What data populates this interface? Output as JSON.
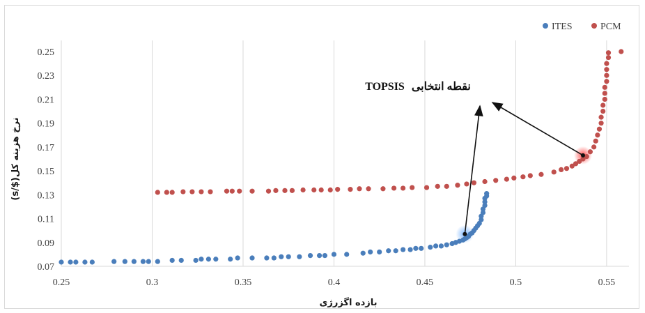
{
  "chart_data": {
    "type": "scatter",
    "xlabel": "بازده اگزرژی",
    "ylabel": "نرخ هزینه کل($/s)",
    "xlim": [
      0.25,
      0.56
    ],
    "ylim": [
      0.07,
      0.25
    ],
    "x_ticks": [
      "0.25",
      "0.3",
      "0.35",
      "0.4",
      "0.45",
      "0.5",
      "0.55"
    ],
    "y_ticks": [
      "0.07",
      "0.09",
      "0.11",
      "0.13",
      "0.15",
      "0.17",
      "0.19",
      "0.21",
      "0.23",
      "0.25"
    ],
    "grid": "vertical",
    "legend_position": "top-right",
    "annotation": {
      "text_fa": "نقطه انتخابی",
      "text_en": "TOPSIS",
      "targets": [
        "ITES",
        "PCM"
      ]
    },
    "series": [
      {
        "name": "ITES",
        "color": "#4a7ebb",
        "highlight": {
          "x": 0.472,
          "y": 0.097
        },
        "points": [
          [
            0.25,
            0.0735
          ],
          [
            0.255,
            0.0735
          ],
          [
            0.258,
            0.0735
          ],
          [
            0.263,
            0.0735
          ],
          [
            0.267,
            0.0735
          ],
          [
            0.279,
            0.074
          ],
          [
            0.285,
            0.074
          ],
          [
            0.29,
            0.074
          ],
          [
            0.295,
            0.074
          ],
          [
            0.298,
            0.074
          ],
          [
            0.303,
            0.074
          ],
          [
            0.311,
            0.075
          ],
          [
            0.316,
            0.075
          ],
          [
            0.324,
            0.075
          ],
          [
            0.327,
            0.076
          ],
          [
            0.331,
            0.076
          ],
          [
            0.335,
            0.076
          ],
          [
            0.343,
            0.076
          ],
          [
            0.347,
            0.077
          ],
          [
            0.355,
            0.077
          ],
          [
            0.363,
            0.077
          ],
          [
            0.367,
            0.077
          ],
          [
            0.371,
            0.078
          ],
          [
            0.375,
            0.078
          ],
          [
            0.381,
            0.078
          ],
          [
            0.387,
            0.079
          ],
          [
            0.392,
            0.079
          ],
          [
            0.395,
            0.079
          ],
          [
            0.4,
            0.08
          ],
          [
            0.407,
            0.08
          ],
          [
            0.416,
            0.081
          ],
          [
            0.42,
            0.082
          ],
          [
            0.425,
            0.082
          ],
          [
            0.43,
            0.083
          ],
          [
            0.434,
            0.083
          ],
          [
            0.438,
            0.084
          ],
          [
            0.442,
            0.084
          ],
          [
            0.445,
            0.085
          ],
          [
            0.448,
            0.085
          ],
          [
            0.453,
            0.086
          ],
          [
            0.456,
            0.087
          ],
          [
            0.459,
            0.087
          ],
          [
            0.462,
            0.088
          ],
          [
            0.465,
            0.089
          ],
          [
            0.467,
            0.09
          ],
          [
            0.469,
            0.091
          ],
          [
            0.471,
            0.092
          ],
          [
            0.472,
            0.093
          ],
          [
            0.473,
            0.094
          ],
          [
            0.474,
            0.095
          ],
          [
            0.475,
            0.097
          ],
          [
            0.476,
            0.098
          ],
          [
            0.477,
            0.1
          ],
          [
            0.478,
            0.102
          ],
          [
            0.479,
            0.104
          ],
          [
            0.48,
            0.106
          ],
          [
            0.481,
            0.109
          ],
          [
            0.481,
            0.112
          ],
          [
            0.482,
            0.115
          ],
          [
            0.482,
            0.118
          ],
          [
            0.483,
            0.121
          ],
          [
            0.483,
            0.124
          ],
          [
            0.483,
            0.127
          ],
          [
            0.484,
            0.129
          ],
          [
            0.484,
            0.131
          ]
        ]
      },
      {
        "name": "PCM",
        "color": "#c0504d",
        "highlight": {
          "x": 0.537,
          "y": 0.163
        },
        "points": [
          [
            0.303,
            0.132
          ],
          [
            0.308,
            0.132
          ],
          [
            0.311,
            0.132
          ],
          [
            0.317,
            0.1325
          ],
          [
            0.322,
            0.1325
          ],
          [
            0.327,
            0.1325
          ],
          [
            0.332,
            0.1325
          ],
          [
            0.341,
            0.133
          ],
          [
            0.344,
            0.133
          ],
          [
            0.348,
            0.133
          ],
          [
            0.355,
            0.133
          ],
          [
            0.364,
            0.133
          ],
          [
            0.368,
            0.1335
          ],
          [
            0.373,
            0.1335
          ],
          [
            0.377,
            0.1335
          ],
          [
            0.383,
            0.134
          ],
          [
            0.389,
            0.134
          ],
          [
            0.393,
            0.134
          ],
          [
            0.398,
            0.134
          ],
          [
            0.402,
            0.1345
          ],
          [
            0.409,
            0.1345
          ],
          [
            0.414,
            0.135
          ],
          [
            0.419,
            0.135
          ],
          [
            0.427,
            0.135
          ],
          [
            0.433,
            0.1355
          ],
          [
            0.438,
            0.1355
          ],
          [
            0.443,
            0.136
          ],
          [
            0.451,
            0.136
          ],
          [
            0.457,
            0.137
          ],
          [
            0.462,
            0.137
          ],
          [
            0.468,
            0.138
          ],
          [
            0.473,
            0.139
          ],
          [
            0.477,
            0.14
          ],
          [
            0.483,
            0.141
          ],
          [
            0.489,
            0.142
          ],
          [
            0.495,
            0.143
          ],
          [
            0.499,
            0.144
          ],
          [
            0.504,
            0.145
          ],
          [
            0.508,
            0.146
          ],
          [
            0.514,
            0.147
          ],
          [
            0.521,
            0.149
          ],
          [
            0.525,
            0.151
          ],
          [
            0.528,
            0.152
          ],
          [
            0.531,
            0.154
          ],
          [
            0.533,
            0.156
          ],
          [
            0.535,
            0.158
          ],
          [
            0.537,
            0.16
          ],
          [
            0.539,
            0.162
          ],
          [
            0.541,
            0.166
          ],
          [
            0.543,
            0.17
          ],
          [
            0.544,
            0.175
          ],
          [
            0.545,
            0.18
          ],
          [
            0.546,
            0.185
          ],
          [
            0.547,
            0.19
          ],
          [
            0.547,
            0.195
          ],
          [
            0.548,
            0.2
          ],
          [
            0.548,
            0.205
          ],
          [
            0.549,
            0.21
          ],
          [
            0.549,
            0.215
          ],
          [
            0.549,
            0.22
          ],
          [
            0.55,
            0.225
          ],
          [
            0.55,
            0.23
          ],
          [
            0.55,
            0.235
          ],
          [
            0.55,
            0.24
          ],
          [
            0.551,
            0.245
          ],
          [
            0.551,
            0.249
          ],
          [
            0.558,
            0.25
          ]
        ]
      }
    ]
  }
}
